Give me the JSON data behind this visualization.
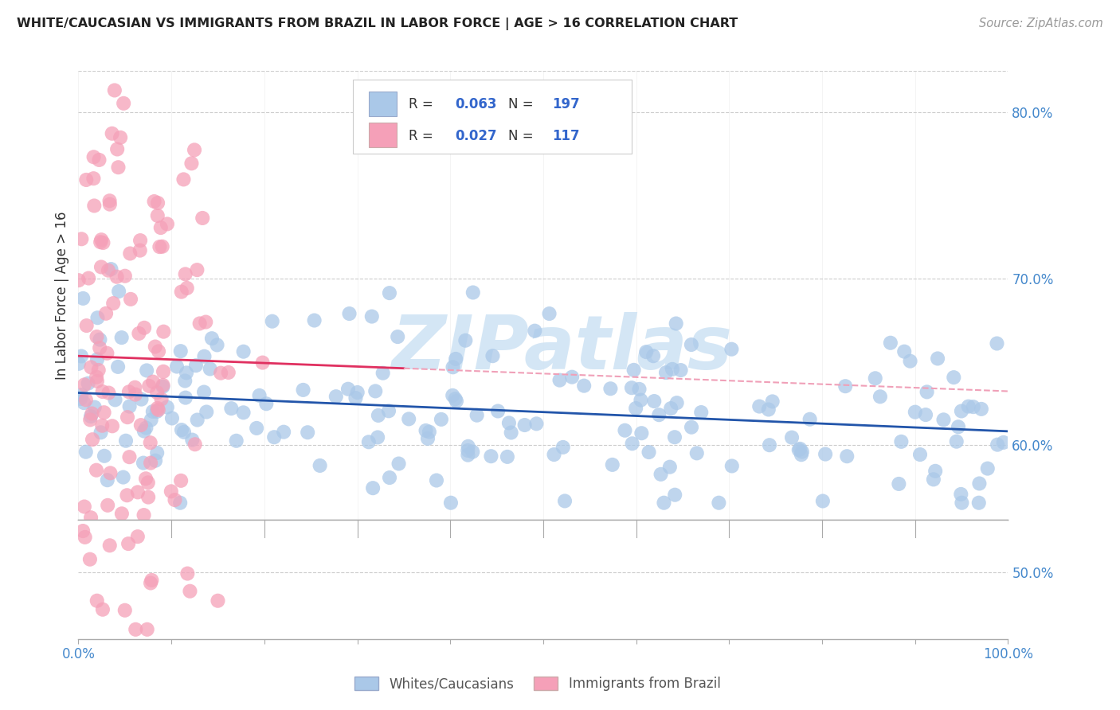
{
  "title": "WHITE/CAUCASIAN VS IMMIGRANTS FROM BRAZIL IN LABOR FORCE | AGE > 16 CORRELATION CHART",
  "source_text": "Source: ZipAtlas.com",
  "ylabel": "In Labor Force | Age > 16",
  "xlim": [
    0.0,
    1.0
  ],
  "ylim_main": [
    0.555,
    0.825
  ],
  "ylim_lower": [
    0.43,
    0.555
  ],
  "yticks_main": [
    0.6,
    0.7,
    0.8
  ],
  "ytick_labels_main": [
    "60.0%",
    "70.0%",
    "80.0%"
  ],
  "ytick_lower": [
    0.5
  ],
  "ytick_labels_lower": [
    "50.0%"
  ],
  "xtick_labels": [
    "0.0%",
    "",
    "",
    "",
    "",
    "",
    "",
    "",
    "",
    "",
    "100.0%"
  ],
  "blue_R": 0.063,
  "blue_N": 197,
  "pink_R": 0.027,
  "pink_N": 117,
  "blue_color": "#aac8e8",
  "pink_color": "#f5a0b8",
  "blue_line_color": "#2255aa",
  "pink_line_color": "#e03060",
  "pink_dash_color": "#f0a0b8",
  "grid_color": "#cccccc",
  "watermark_text": "ZIPatlas",
  "watermark_color": "#d0e4f4",
  "legend1_label": "Whites/Caucasians",
  "legend2_label": "Immigrants from Brazil",
  "blue_seed": 12,
  "pink_seed": 99
}
